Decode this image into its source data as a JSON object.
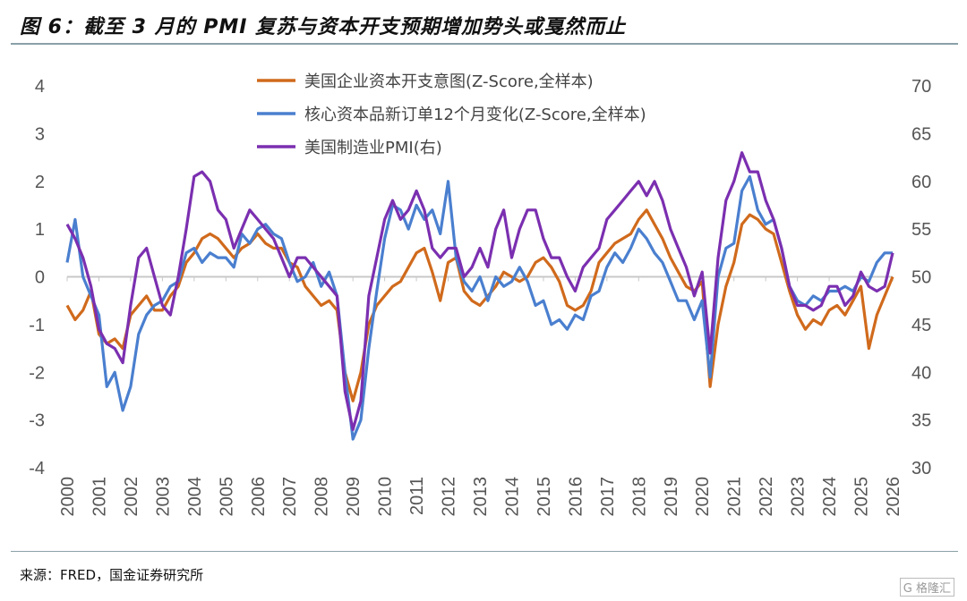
{
  "title": "图 6：截至 3 月的 PMI 复苏与资本开支预期增加势头或戛然而止",
  "source": "来源：FRED，国金证券研究所",
  "watermark": "格隆汇",
  "chart_data": {
    "type": "line",
    "x_ticks": [
      "2000",
      "2001",
      "2002",
      "2003",
      "2004",
      "2005",
      "2006",
      "2007",
      "2008",
      "2009",
      "2010",
      "2011",
      "2012",
      "2013",
      "2014",
      "2015",
      "2016",
      "2017",
      "2018",
      "2019",
      "2020",
      "2021",
      "2022",
      "2023",
      "2024",
      "2025",
      "2026"
    ],
    "x_range": [
      2000,
      2026
    ],
    "left_ylim": [
      -4,
      4
    ],
    "left_ticks": [
      "4",
      "3",
      "2",
      "1",
      "0",
      "-1",
      "-2",
      "-3",
      "-4"
    ],
    "right_ylim": [
      30,
      70
    ],
    "right_ticks": [
      "70",
      "65",
      "60",
      "55",
      "50",
      "45",
      "40",
      "35",
      "30"
    ],
    "legend_position": "top-center",
    "grid": false,
    "x_step_years": 0.25,
    "series": [
      {
        "name": "美国企业资本开支意图(Z-Score,全样本)",
        "axis": "left",
        "color": "#d06a1c",
        "values": [
          -0.6,
          -0.9,
          -0.7,
          -0.3,
          -1.2,
          -1.4,
          -1.3,
          -1.5,
          -0.8,
          -0.6,
          -0.4,
          -0.7,
          -0.7,
          -0.4,
          -0.2,
          0.3,
          0.5,
          0.8,
          0.9,
          0.8,
          0.6,
          0.4,
          0.6,
          0.7,
          0.9,
          0.7,
          0.6,
          0.6,
          0.3,
          0.2,
          -0.2,
          -0.4,
          -0.6,
          -0.5,
          -0.7,
          -2.0,
          -2.6,
          -2.0,
          -1.0,
          -0.6,
          -0.4,
          -0.2,
          -0.1,
          0.2,
          0.5,
          0.6,
          0.1,
          -0.5,
          0.3,
          0.4,
          -0.3,
          -0.5,
          -0.6,
          -0.4,
          -0.2,
          0.1,
          0.0,
          -0.1,
          0.0,
          0.3,
          0.4,
          0.2,
          -0.1,
          -0.6,
          -0.7,
          -0.6,
          -0.3,
          0.3,
          0.5,
          0.7,
          0.8,
          0.9,
          1.2,
          1.4,
          1.1,
          0.8,
          0.4,
          0.1,
          -0.2,
          -0.3,
          -0.1,
          -2.3,
          -1.0,
          -0.2,
          0.3,
          1.1,
          1.3,
          1.2,
          1.0,
          0.9,
          0.3,
          -0.3,
          -0.8,
          -1.1,
          -0.9,
          -1.0,
          -0.7,
          -0.6,
          -0.8,
          -0.5,
          -0.2,
          -1.5,
          -0.8,
          -0.4,
          0.0
        ]
      },
      {
        "name": "核心资本品新订单12个月变化(Z-Score,全样本)",
        "axis": "left",
        "color": "#4a7fcf",
        "values": [
          0.3,
          1.2,
          0.0,
          -0.4,
          -0.8,
          -2.3,
          -2.0,
          -2.8,
          -2.3,
          -1.2,
          -0.8,
          -0.6,
          -0.5,
          -0.2,
          -0.1,
          0.5,
          0.6,
          0.3,
          0.5,
          0.4,
          0.4,
          0.2,
          0.9,
          0.7,
          1.0,
          1.1,
          0.9,
          0.8,
          0.3,
          -0.1,
          0.0,
          0.3,
          -0.2,
          0.1,
          -0.4,
          -2.0,
          -3.4,
          -3.0,
          -1.5,
          -0.3,
          0.8,
          1.5,
          1.4,
          1.0,
          1.5,
          1.2,
          1.4,
          0.9,
          2.0,
          0.4,
          -0.1,
          -0.3,
          0.0,
          -0.5,
          0.0,
          -0.2,
          -0.1,
          0.2,
          -0.1,
          -0.6,
          -0.5,
          -1.0,
          -0.9,
          -1.1,
          -0.8,
          -0.9,
          -0.4,
          -0.3,
          0.2,
          0.5,
          0.3,
          0.6,
          1.0,
          0.8,
          0.5,
          0.3,
          -0.1,
          -0.5,
          -0.5,
          -0.9,
          -0.5,
          -2.1,
          0.0,
          0.6,
          0.7,
          1.8,
          2.1,
          1.4,
          1.1,
          1.2,
          0.6,
          -0.2,
          -0.5,
          -0.6,
          -0.4,
          -0.5,
          -0.3,
          -0.3,
          -0.2,
          -0.3,
          0.0,
          -0.1,
          0.3,
          0.5,
          0.5
        ]
      },
      {
        "name": "美国制造业PMI(右)",
        "axis": "right",
        "color": "#7b2fb0",
        "values": [
          55.5,
          54,
          52,
          49,
          44.5,
          43,
          42.5,
          41,
          47,
          52,
          53,
          50,
          47,
          46,
          50,
          55,
          60.5,
          61,
          60,
          57,
          56,
          53,
          55,
          57,
          56,
          55,
          54,
          52,
          50,
          52,
          52,
          51,
          50,
          49,
          48,
          38,
          34,
          37,
          48,
          52,
          56,
          58,
          56,
          57,
          59,
          57,
          53,
          52,
          53,
          53,
          50,
          51,
          53,
          51,
          55,
          57,
          52,
          55,
          57,
          57,
          54,
          52,
          52,
          50,
          48.5,
          51,
          52,
          53,
          56,
          57,
          58,
          59,
          60,
          58.5,
          60,
          58,
          55,
          53,
          51,
          48,
          50.5,
          42,
          52,
          58,
          60,
          63,
          61,
          61,
          58,
          56,
          53,
          49,
          47,
          47,
          46.5,
          47,
          49,
          49,
          47,
          48,
          50.5,
          49,
          48.5,
          49,
          52.5
        ]
      }
    ]
  }
}
